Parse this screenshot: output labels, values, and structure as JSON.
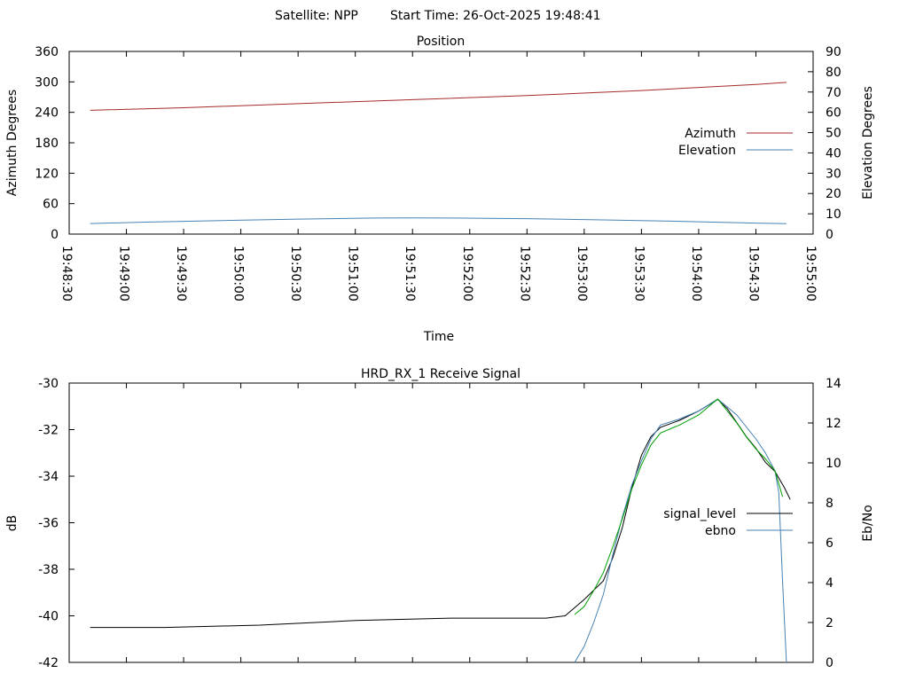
{
  "header": {
    "satellite_text": "Satellite: NPP",
    "start_time_text": "Start Time: 26-Oct-2025 19:48:41"
  },
  "chart_data": [
    {
      "type": "line",
      "title": "Position",
      "xlabel": "Time",
      "ylabel": "Azimuth Degrees",
      "y2label": "Elevation Degrees",
      "x_ticks": [
        "19:48:30",
        "19:49:00",
        "19:49:30",
        "19:50:00",
        "19:50:30",
        "19:51:00",
        "19:51:30",
        "19:52:00",
        "19:52:30",
        "19:53:00",
        "19:53:30",
        "19:54:00",
        "19:54:30",
        "19:55:00"
      ],
      "x_range_seconds": [
        0,
        390
      ],
      "y_ticks": [
        0,
        60,
        120,
        180,
        240,
        300,
        360
      ],
      "ylim": [
        0,
        360
      ],
      "y2_ticks": [
        0,
        10,
        20,
        30,
        40,
        50,
        60,
        70,
        80,
        90
      ],
      "y2lim": [
        0,
        90
      ],
      "legend_position": "right",
      "series": [
        {
          "name": "Azimuth",
          "axis": "y",
          "color": "#a52a2a",
          "x": [
            11,
            60,
            120,
            180,
            240,
            300,
            360,
            376
          ],
          "y": [
            244,
            249,
            257,
            265,
            273,
            283,
            295,
            299
          ]
        },
        {
          "name": "Elevation",
          "axis": "y2",
          "color": "#4682b4",
          "x": [
            11,
            40,
            80,
            120,
            160,
            180,
            200,
            240,
            280,
            320,
            360,
            376
          ],
          "y": [
            5.2,
            5.9,
            6.7,
            7.4,
            7.9,
            8.0,
            7.9,
            7.6,
            7.0,
            6.3,
            5.4,
            5.1
          ]
        }
      ]
    },
    {
      "type": "line",
      "title": "HRD_RX_1 Receive Signal",
      "xlabel": "",
      "ylabel": "dB",
      "y2label": "Eb/No",
      "y_ticks": [
        -42,
        -40,
        -38,
        -36,
        -34,
        -32,
        -30
      ],
      "ylim": [
        -42,
        -30
      ],
      "y2_ticks": [
        0,
        2,
        4,
        6,
        8,
        10,
        12,
        14
      ],
      "y2lim": [
        0,
        14
      ],
      "x_range_seconds": [
        0,
        390
      ],
      "legend_position": "right",
      "series": [
        {
          "name": "signal_level",
          "color": "#000000",
          "x": [
            11,
            50,
            100,
            150,
            200,
            250,
            260,
            270,
            280,
            285,
            290,
            295,
            300,
            305,
            310,
            320,
            330,
            340,
            345,
            350,
            355,
            360,
            365,
            370,
            375,
            378
          ],
          "y": [
            -40.5,
            -40.5,
            -40.4,
            -40.2,
            -40.1,
            -40.1,
            -40.0,
            -39.3,
            -38.5,
            -37.5,
            -36.2,
            -34.5,
            -33.1,
            -32.3,
            -31.9,
            -31.6,
            -31.2,
            -30.7,
            -31.1,
            -31.7,
            -32.3,
            -32.8,
            -33.4,
            -33.8,
            -34.5,
            -35.0
          ]
        },
        {
          "name": "ebno",
          "color": "#4682b4",
          "x": [
            265,
            270,
            275,
            280,
            285,
            290,
            295,
            300,
            305,
            310,
            320,
            330,
            340,
            345,
            350,
            355,
            360,
            365,
            370,
            372,
            374,
            376
          ],
          "y": [
            0.0,
            0.8,
            2.0,
            3.4,
            5.4,
            7.3,
            8.9,
            10.1,
            11.2,
            11.9,
            12.2,
            12.6,
            13.2,
            12.8,
            12.4,
            11.8,
            11.2,
            10.5,
            9.6,
            8.5,
            4.0,
            0.0
          ]
        },
        {
          "name": "",
          "color": "#00a000",
          "x": [
            265,
            270,
            275,
            280,
            285,
            290,
            295,
            300,
            305,
            310,
            320,
            330,
            340,
            345,
            350,
            355,
            360,
            365,
            370,
            374
          ],
          "y": [
            2.4,
            2.8,
            3.6,
            4.5,
            5.8,
            7.2,
            8.7,
            9.9,
            10.9,
            11.5,
            11.9,
            12.4,
            13.2,
            12.6,
            12.0,
            11.3,
            10.7,
            10.2,
            9.6,
            8.3
          ]
        }
      ]
    }
  ]
}
